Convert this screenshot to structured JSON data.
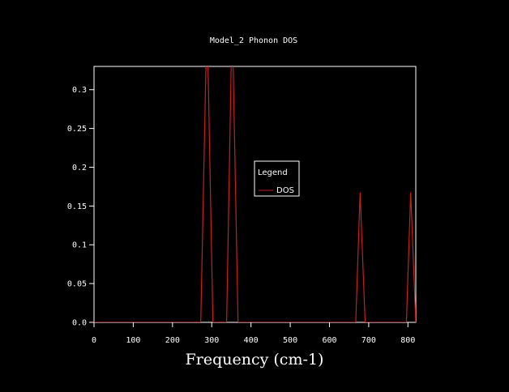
{
  "chart_data": {
    "type": "line",
    "title": "Model_2 Phonon DOS",
    "xlabel": "Frequency (cm-1)",
    "ylabel": "",
    "xlim": [
      0,
      820
    ],
    "ylim": [
      0,
      0.33
    ],
    "x_ticks": [
      0,
      100,
      200,
      300,
      400,
      500,
      600,
      700,
      800
    ],
    "x_tick_labels": [
      "0",
      "100",
      "200",
      "300",
      "400",
      "500",
      "600",
      "700",
      "800"
    ],
    "y_ticks": [
      0,
      0.05,
      0.1,
      0.15,
      0.2,
      0.25,
      0.3
    ],
    "y_tick_labels": [
      "0.0",
      "0.05",
      "0.1",
      "0.15",
      "0.2",
      "0.25",
      "0.3"
    ],
    "grid": false,
    "legend": {
      "title": "Legend",
      "placement": "center"
    },
    "series": [
      {
        "name": "DOS",
        "color": "#c81e1e",
        "x": [
          0,
          272,
          288,
          303,
          338,
          352,
          367,
          667,
          678,
          691,
          796,
          807,
          820
        ],
        "y": [
          0,
          0,
          0.4,
          0,
          0,
          0.4,
          0,
          0,
          0.167,
          0,
          0,
          0.167,
          0
        ]
      }
    ]
  }
}
